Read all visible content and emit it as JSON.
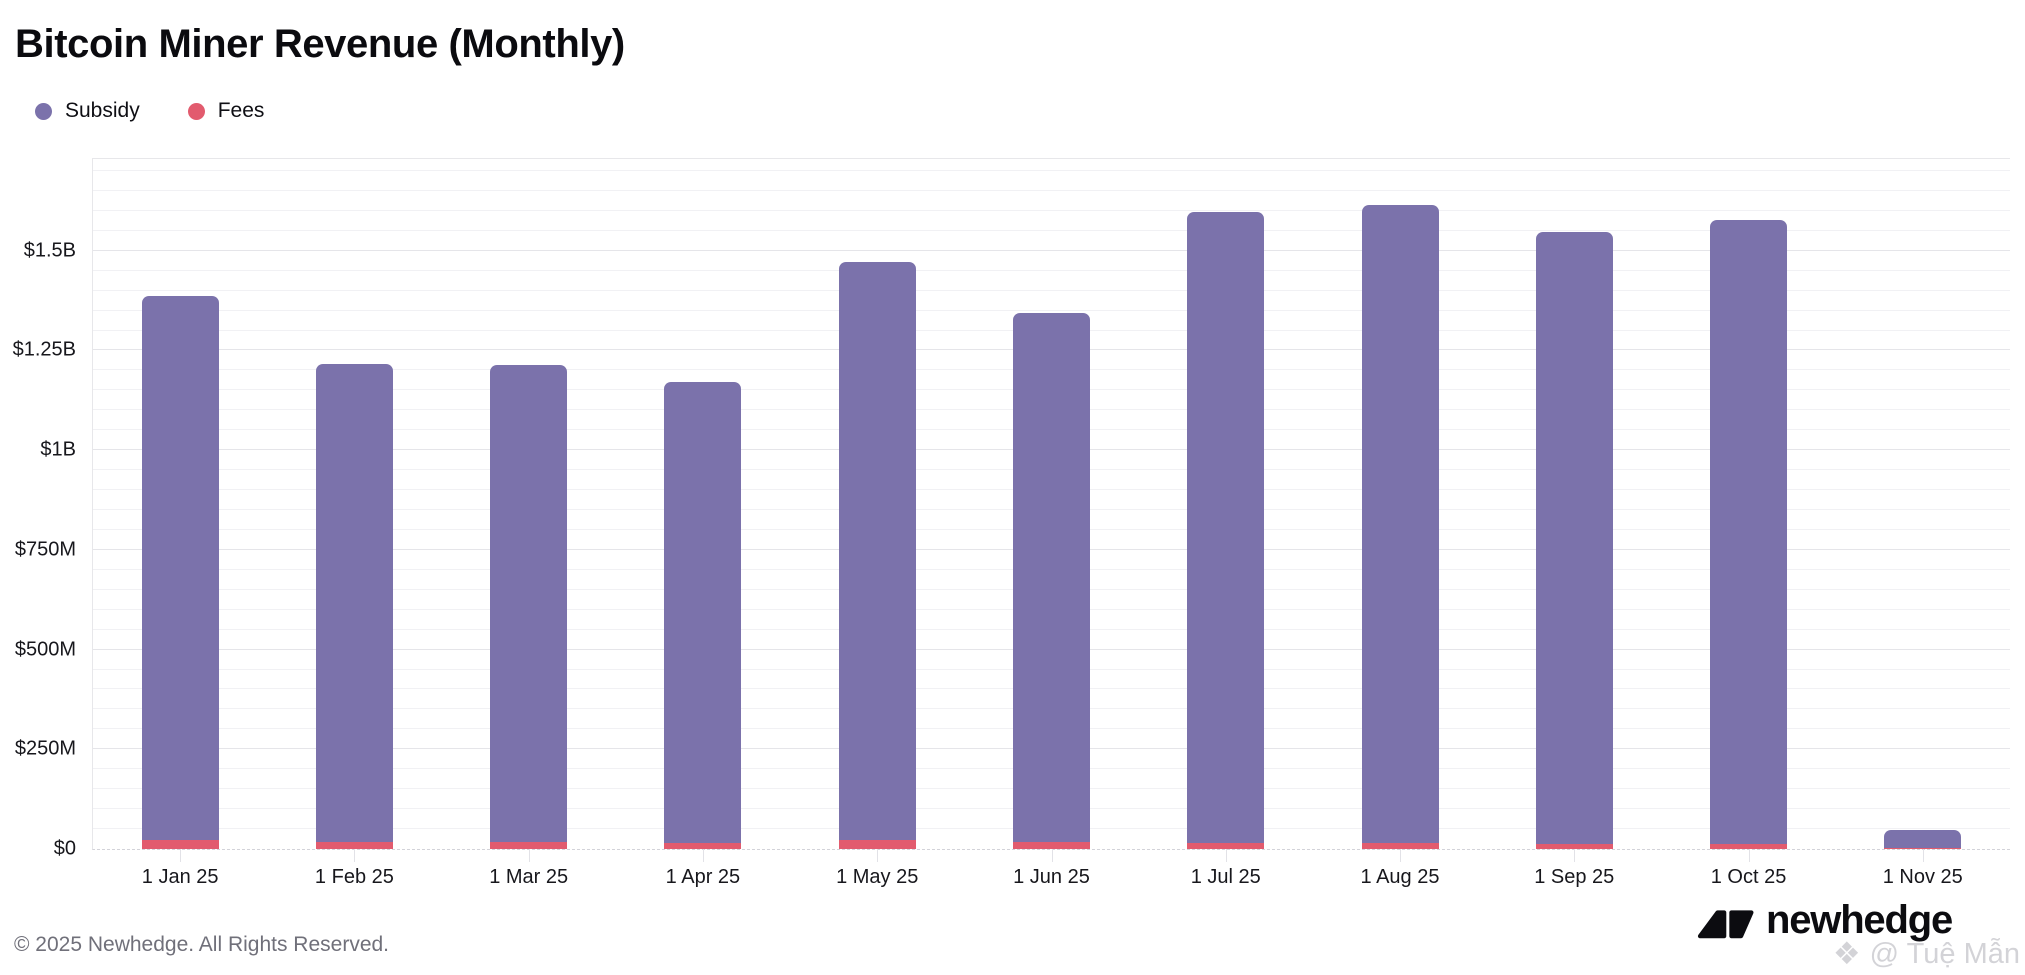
{
  "title": "Bitcoin Miner Revenue (Monthly)",
  "legend": [
    {
      "label": "Subsidy",
      "color": "#7b72ab"
    },
    {
      "label": "Fees",
      "color": "#e25b6e"
    }
  ],
  "chart_data": {
    "type": "bar",
    "stacked": true,
    "title": "Bitcoin Miner Revenue (Monthly)",
    "categories": [
      "1 Jan 25",
      "1 Feb 25",
      "1 Mar 25",
      "1 Apr 25",
      "1 May 25",
      "1 Jun 25",
      "1 Jul 25",
      "1 Aug 25",
      "1 Sep 25",
      "1 Oct 25",
      "1 Nov 25"
    ],
    "series": [
      {
        "name": "Subsidy",
        "color": "#7b72ab",
        "values": [
          1365,
          1198,
          1197,
          1155,
          1449,
          1327,
          1582,
          1601,
          1534,
          1564,
          45
        ]
      },
      {
        "name": "Fees",
        "color": "#e25b6e",
        "values": [
          22,
          18,
          17,
          16,
          23,
          17,
          15,
          14,
          13,
          13,
          3
        ]
      }
    ],
    "units": "USD millions",
    "xlabel": "",
    "ylabel": "",
    "ylim": [
      0,
      1730
    ],
    "minor_grid_step": 50,
    "grid": true,
    "legend_position": "top-left",
    "y_ticks": [
      {
        "value": 0,
        "label": "$0"
      },
      {
        "value": 250,
        "label": "$250M"
      },
      {
        "value": 500,
        "label": "$500M"
      },
      {
        "value": 750,
        "label": "$750M"
      },
      {
        "value": 1000,
        "label": "$1B"
      },
      {
        "value": 1250,
        "label": "$1.25B"
      },
      {
        "value": 1500,
        "label": "$1.5B"
      }
    ]
  },
  "footer": {
    "copyright": "© 2025 Newhedge. All Rights Reserved.",
    "brand": "newhedge",
    "watermark_icon": "❖",
    "watermark": "@ Tuệ Mẫn"
  }
}
